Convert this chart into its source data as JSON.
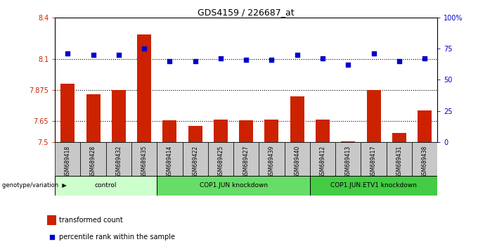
{
  "title": "GDS4159 / 226687_at",
  "samples": [
    "GSM689418",
    "GSM689428",
    "GSM689432",
    "GSM689435",
    "GSM689414",
    "GSM689422",
    "GSM689425",
    "GSM689427",
    "GSM689439",
    "GSM689440",
    "GSM689412",
    "GSM689413",
    "GSM689417",
    "GSM689431",
    "GSM689438"
  ],
  "bar_values": [
    7.92,
    7.845,
    7.875,
    8.275,
    7.655,
    7.615,
    7.66,
    7.655,
    7.66,
    7.83,
    7.66,
    7.503,
    7.875,
    7.565,
    7.73
  ],
  "dot_values": [
    71,
    70,
    70,
    75,
    65,
    65,
    67,
    66,
    66,
    70,
    67,
    62,
    71,
    65,
    67
  ],
  "bar_color": "#cc2200",
  "dot_color": "#0000cc",
  "ylim_left": [
    7.5,
    8.4
  ],
  "ylim_right": [
    0,
    100
  ],
  "yticks_left": [
    7.5,
    7.65,
    7.875,
    8.1,
    8.4
  ],
  "ytick_labels_left": [
    "7.5",
    "7.65",
    "7.875",
    "8.1",
    "8.4"
  ],
  "yticks_right": [
    0,
    25,
    50,
    75,
    100
  ],
  "ytick_labels_right": [
    "0",
    "25",
    "50",
    "75",
    "100%"
  ],
  "hlines": [
    7.65,
    7.875,
    8.1
  ],
  "groups": [
    {
      "label": "control",
      "start": 0,
      "end": 3,
      "color": "#ccffcc"
    },
    {
      "label": "COP1.JUN knockdown",
      "start": 4,
      "end": 9,
      "color": "#66dd66"
    },
    {
      "label": "COP1.JUN.ETV1 knockdown",
      "start": 10,
      "end": 14,
      "color": "#44cc44"
    }
  ],
  "genotype_label": "genotype/variation",
  "legend_bar_label": "transformed count",
  "legend_dot_label": "percentile rank within the sample",
  "xticklabel_bg": "#c8c8c8",
  "plot_bg": "#ffffff"
}
